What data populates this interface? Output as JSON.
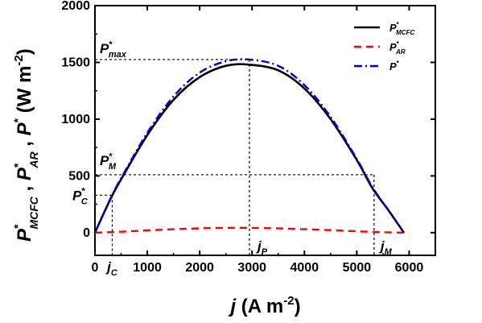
{
  "chart_data": {
    "type": "line",
    "xlabel": {
      "main": "j",
      "rest": " (A m",
      "sup": "-2",
      "close": ")"
    },
    "ylabel": {
      "parts": [
        {
          "base": "P",
          "sup": "*",
          "sub": "MCFC"
        },
        {
          "sep": " , "
        },
        {
          "base": "P",
          "sup": "*",
          "sub": "AR"
        },
        {
          "sep": " , "
        },
        {
          "base": "P",
          "sup": "*",
          "sub": ""
        },
        {
          "sep": " (W m",
          "sup2": "-2",
          "close": ")"
        }
      ]
    },
    "xlim": [
      0,
      6500
    ],
    "ylim": [
      -200,
      2000
    ],
    "xticks": [
      0,
      1000,
      2000,
      3000,
      4000,
      5000,
      6000
    ],
    "yticks": [
      0,
      500,
      1000,
      1500,
      2000
    ],
    "grid": false,
    "legend_position": "top-right",
    "series": [
      {
        "key": "mcfc",
        "legend": {
          "base": "P",
          "sup": "*",
          "sub": "MCFC"
        },
        "color": "#000000",
        "style": "solid",
        "x": [
          0,
          300,
          500,
          1000,
          1500,
          2000,
          2500,
          2950,
          3500,
          4000,
          4500,
          5000,
          5300,
          5600,
          5900
        ],
        "y": [
          0,
          300,
          470,
          860,
          1170,
          1370,
          1470,
          1480,
          1430,
          1270,
          1000,
          640,
          390,
          200,
          0
        ]
      },
      {
        "key": "ar",
        "legend": {
          "base": "P",
          "sup": "*",
          "sub": "AR"
        },
        "color": "#ff0000",
        "style": "dash",
        "x": [
          0,
          500,
          1000,
          1500,
          2000,
          2500,
          2950,
          3500,
          4000,
          4500,
          5000,
          5500,
          5900
        ],
        "y": [
          0,
          8,
          20,
          30,
          38,
          42,
          42,
          38,
          30,
          22,
          12,
          4,
          0
        ]
      },
      {
        "key": "total",
        "legend": {
          "base": "P",
          "sup": "*",
          "sub": ""
        },
        "color": "#0000cc",
        "style": "dashdot",
        "x": [
          0,
          300,
          500,
          1000,
          1500,
          2000,
          2500,
          2950,
          3500,
          4000,
          4500,
          5000,
          5300,
          5600,
          5900
        ],
        "y": [
          0,
          305,
          480,
          880,
          1200,
          1410,
          1510,
          1525,
          1470,
          1300,
          1020,
          650,
          400,
          200,
          0
        ]
      }
    ],
    "annotations": {
      "p_max": {
        "value": 1525,
        "label": {
          "base": "P",
          "sup": "*",
          "sub": "max"
        }
      },
      "p_m": {
        "value": 510,
        "label": {
          "base": "P",
          "sup": "*",
          "sub": "M"
        }
      },
      "p_c": {
        "value": 330,
        "label": {
          "base": "P",
          "sup": "*",
          "sub": "C"
        }
      },
      "j_c": {
        "value": 330,
        "label": {
          "base": "j",
          "sub": "C"
        }
      },
      "j_p": {
        "value": 2950,
        "label": {
          "base": "j",
          "sub": "P"
        }
      },
      "j_m": {
        "value": 5330,
        "label": {
          "base": "j",
          "sub": "M"
        }
      }
    }
  }
}
